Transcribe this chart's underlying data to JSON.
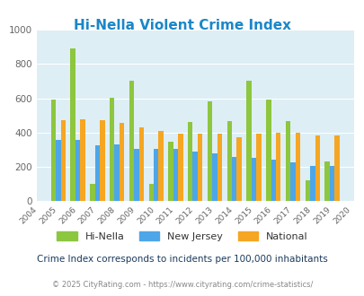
{
  "title": "Hi-Nella Violent Crime Index",
  "years": [
    2004,
    2005,
    2006,
    2007,
    2008,
    2009,
    2010,
    2011,
    2012,
    2013,
    2014,
    2015,
    2016,
    2017,
    2018,
    2019,
    2020
  ],
  "hi_nella": [
    null,
    590,
    890,
    100,
    605,
    700,
    100,
    345,
    460,
    580,
    465,
    700,
    590,
    465,
    120,
    230,
    null
  ],
  "new_jersey": [
    null,
    355,
    355,
    325,
    330,
    305,
    305,
    305,
    290,
    280,
    260,
    255,
    240,
    228,
    205,
    205,
    null
  ],
  "national": [
    null,
    470,
    475,
    470,
    455,
    430,
    408,
    395,
    395,
    395,
    375,
    395,
    398,
    398,
    383,
    383,
    null
  ],
  "hi_nella_color": "#8dc63f",
  "nj_color": "#4da6e8",
  "national_color": "#f5a623",
  "bg_color": "#deeef5",
  "title_color": "#1a87c8",
  "subtitle_color": "#1a3a5c",
  "footer_color": "#888888",
  "footer_link_color": "#4da6e8",
  "ylim": [
    0,
    1000
  ],
  "yticks": [
    0,
    200,
    400,
    600,
    800,
    1000
  ],
  "subtitle": "Crime Index corresponds to incidents per 100,000 inhabitants",
  "footer": "© 2025 CityRating.com - https://www.cityrating.com/crime-statistics/",
  "legend_labels": [
    "Hi-Nella",
    "New Jersey",
    "National"
  ],
  "bar_width": 0.25
}
